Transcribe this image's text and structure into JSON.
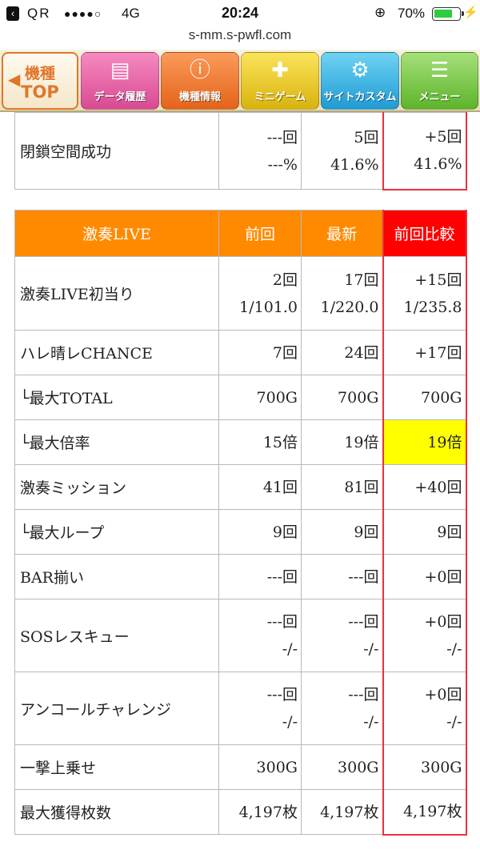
{
  "status_bar": {
    "carrier": "QR",
    "signal": "●●●●○",
    "network": "4G",
    "time": "20:24",
    "battery": "70%"
  },
  "url": "s-mm.s-pwfl.com",
  "nav": {
    "top_line1": "機種",
    "top_line2": "TOP",
    "data_history": "データ履歴",
    "machine_info": "機種情報",
    "mini_game": "ミニゲーム",
    "site_custom": "サイトカスタム",
    "menu": "メニュー"
  },
  "top_table": {
    "rows": [
      {
        "label": "閉鎖空間成功",
        "prev": [
          "---回",
          "---%"
        ],
        "latest": [
          "5回",
          "41.6%"
        ],
        "compare": [
          "+5回",
          "41.6%"
        ]
      }
    ]
  },
  "main_table": {
    "headers": {
      "title": "激奏LIVE",
      "prev": "前回",
      "latest": "最新",
      "compare": "前回比較"
    },
    "rows": [
      {
        "label": "激奏LIVE初当り",
        "prev": [
          "2回",
          "1/101.0"
        ],
        "latest": [
          "17回",
          "1/220.0"
        ],
        "compare": [
          "+15回",
          "1/235.8"
        ]
      },
      {
        "label": "ハレ晴レCHANCE",
        "prev": [
          "7回"
        ],
        "latest": [
          "24回"
        ],
        "compare": [
          "+17回"
        ]
      },
      {
        "label": "└最大TOTAL",
        "prev": [
          "700G"
        ],
        "latest": [
          "700G"
        ],
        "compare": [
          "700G"
        ]
      },
      {
        "label": "└最大倍率",
        "prev": [
          "15倍"
        ],
        "latest": [
          "19倍"
        ],
        "compare": [
          "19倍"
        ],
        "highlight": true
      },
      {
        "label": "激奏ミッション",
        "prev": [
          "41回"
        ],
        "latest": [
          "81回"
        ],
        "compare": [
          "+40回"
        ]
      },
      {
        "label": "└最大ループ",
        "prev": [
          "9回"
        ],
        "latest": [
          "9回"
        ],
        "compare": [
          "9回"
        ]
      },
      {
        "label": "BAR揃い",
        "prev": [
          "---回"
        ],
        "latest": [
          "---回"
        ],
        "compare": [
          "+0回"
        ]
      },
      {
        "label": "SOSレスキュー",
        "prev": [
          "---回",
          "-/-"
        ],
        "latest": [
          "---回",
          "-/-"
        ],
        "compare": [
          "+0回",
          "-/-"
        ]
      },
      {
        "label": "アンコールチャレンジ",
        "prev": [
          "---回",
          "-/-"
        ],
        "latest": [
          "---回",
          "-/-"
        ],
        "compare": [
          "+0回",
          "-/-"
        ]
      },
      {
        "label": "一撃上乗せ",
        "prev": [
          "300G"
        ],
        "latest": [
          "300G"
        ],
        "compare": [
          "300G"
        ]
      },
      {
        "label": "最大獲得枚数",
        "prev": [
          "4,197枚"
        ],
        "latest": [
          "4,197枚"
        ],
        "compare": [
          "4,197枚"
        ]
      }
    ]
  },
  "colors": {
    "header_orange": "#ff8a00",
    "header_red": "#ff0000",
    "highlight_yellow": "#ffff00",
    "compare_border": "#e8323c"
  }
}
